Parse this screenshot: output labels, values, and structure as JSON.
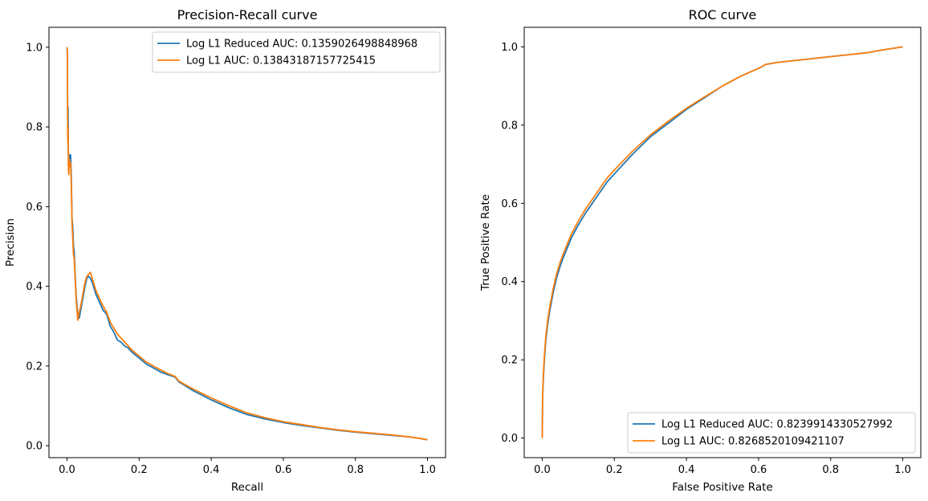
{
  "colors": {
    "series_1": "#1f77b4",
    "series_2": "#ff7f0e",
    "axes": "#000000",
    "legend_border": "#cccccc"
  },
  "chart_data": [
    {
      "type": "line",
      "title": "Precision-Recall curve",
      "xlabel": "Recall",
      "ylabel": "Precision",
      "xlim": [
        -0.05,
        1.05
      ],
      "ylim": [
        -0.03,
        1.05
      ],
      "xticks": [
        "0.0",
        "0.2",
        "0.4",
        "0.6",
        "0.8",
        "1.0"
      ],
      "yticks": [
        "0.0",
        "0.2",
        "0.4",
        "0.6",
        "0.8",
        "1.0"
      ],
      "grid": false,
      "legend_position": "upper right",
      "series": [
        {
          "name": "Log L1 Reduced AUC: 0.1359026498848968",
          "color": "#1f77b4",
          "x": [
            0,
            0.001,
            0.002,
            0.003,
            0.004,
            0.006,
            0.008,
            0.01,
            0.012,
            0.014,
            0.016,
            0.018,
            0.02,
            0.023,
            0.026,
            0.03,
            0.034,
            0.038,
            0.042,
            0.046,
            0.05,
            0.055,
            0.06,
            0.065,
            0.07,
            0.08,
            0.09,
            0.1,
            0.11,
            0.12,
            0.13,
            0.14,
            0.15,
            0.16,
            0.17,
            0.18,
            0.2,
            0.22,
            0.24,
            0.26,
            0.28,
            0.3,
            0.31,
            0.32,
            0.35,
            0.4,
            0.45,
            0.5,
            0.55,
            0.6,
            0.65,
            0.7,
            0.75,
            0.8,
            0.85,
            0.9,
            0.95,
            0.98,
            1.0
          ],
          "y": [
            1.0,
            0.98,
            0.78,
            0.85,
            0.7,
            0.73,
            0.72,
            0.73,
            0.68,
            0.57,
            0.55,
            0.5,
            0.49,
            0.42,
            0.37,
            0.33,
            0.32,
            0.34,
            0.36,
            0.38,
            0.4,
            0.42,
            0.425,
            0.42,
            0.41,
            0.38,
            0.36,
            0.34,
            0.33,
            0.3,
            0.285,
            0.265,
            0.26,
            0.25,
            0.245,
            0.235,
            0.22,
            0.205,
            0.195,
            0.185,
            0.178,
            0.172,
            0.16,
            0.155,
            0.138,
            0.115,
            0.095,
            0.078,
            0.067,
            0.058,
            0.051,
            0.045,
            0.039,
            0.034,
            0.03,
            0.026,
            0.022,
            0.018,
            0.015
          ]
        },
        {
          "name": "Log L1 AUC: 0.13843187157725415",
          "color": "#ff7f0e",
          "x": [
            0,
            0.001,
            0.002,
            0.003,
            0.004,
            0.005,
            0.006,
            0.008,
            0.01,
            0.012,
            0.014,
            0.016,
            0.018,
            0.02,
            0.023,
            0.026,
            0.03,
            0.034,
            0.038,
            0.042,
            0.046,
            0.05,
            0.055,
            0.06,
            0.065,
            0.07,
            0.08,
            0.09,
            0.1,
            0.11,
            0.12,
            0.13,
            0.14,
            0.15,
            0.16,
            0.17,
            0.18,
            0.2,
            0.22,
            0.24,
            0.26,
            0.28,
            0.3,
            0.31,
            0.32,
            0.35,
            0.4,
            0.45,
            0.5,
            0.55,
            0.6,
            0.65,
            0.7,
            0.75,
            0.8,
            0.85,
            0.9,
            0.95,
            0.98,
            1.0
          ],
          "y": [
            1.0,
            0.99,
            0.76,
            0.8,
            0.69,
            0.68,
            0.72,
            0.7,
            0.71,
            0.66,
            0.56,
            0.52,
            0.48,
            0.47,
            0.41,
            0.36,
            0.315,
            0.335,
            0.35,
            0.37,
            0.39,
            0.41,
            0.425,
            0.43,
            0.435,
            0.42,
            0.39,
            0.37,
            0.35,
            0.335,
            0.31,
            0.295,
            0.28,
            0.27,
            0.26,
            0.25,
            0.24,
            0.225,
            0.21,
            0.2,
            0.19,
            0.181,
            0.174,
            0.162,
            0.157,
            0.142,
            0.12,
            0.1,
            0.082,
            0.07,
            0.06,
            0.053,
            0.046,
            0.04,
            0.035,
            0.031,
            0.027,
            0.022,
            0.018,
            0.015
          ]
        }
      ]
    },
    {
      "type": "line",
      "title": "ROC curve",
      "xlabel": "False Positive Rate",
      "ylabel": "True Positive Rate",
      "xlim": [
        -0.05,
        1.05
      ],
      "ylim": [
        -0.05,
        1.05
      ],
      "xticks": [
        "0.0",
        "0.2",
        "0.4",
        "0.6",
        "0.8",
        "1.0"
      ],
      "yticks": [
        "0.0",
        "0.2",
        "0.4",
        "0.6",
        "0.8",
        "1.0"
      ],
      "grid": false,
      "legend_position": "lower right",
      "series": [
        {
          "name": "Log L1 Reduced AUC: 0.8239914330527992",
          "color": "#1f77b4",
          "x": [
            0,
            0.001,
            0.003,
            0.006,
            0.01,
            0.015,
            0.02,
            0.03,
            0.04,
            0.05,
            0.06,
            0.08,
            0.1,
            0.12,
            0.15,
            0.18,
            0.2,
            0.25,
            0.3,
            0.35,
            0.4,
            0.45,
            0.5,
            0.55,
            0.6,
            0.62,
            0.65,
            0.7,
            0.75,
            0.8,
            0.85,
            0.9,
            0.95,
            1.0
          ],
          "y": [
            0,
            0.1,
            0.15,
            0.2,
            0.25,
            0.29,
            0.32,
            0.37,
            0.41,
            0.44,
            0.465,
            0.51,
            0.545,
            0.575,
            0.615,
            0.655,
            0.675,
            0.725,
            0.77,
            0.805,
            0.84,
            0.87,
            0.9,
            0.925,
            0.945,
            0.955,
            0.96,
            0.965,
            0.97,
            0.975,
            0.98,
            0.985,
            0.993,
            1.0
          ]
        },
        {
          "name": "Log L1 AUC: 0.8268520109421107",
          "color": "#ff7f0e",
          "x": [
            0,
            0.001,
            0.003,
            0.006,
            0.01,
            0.015,
            0.02,
            0.03,
            0.04,
            0.05,
            0.06,
            0.08,
            0.1,
            0.12,
            0.15,
            0.18,
            0.2,
            0.25,
            0.3,
            0.35,
            0.4,
            0.45,
            0.5,
            0.55,
            0.6,
            0.62,
            0.65,
            0.7,
            0.75,
            0.8,
            0.85,
            0.9,
            0.95,
            1.0
          ],
          "y": [
            0,
            0.11,
            0.16,
            0.21,
            0.26,
            0.3,
            0.33,
            0.38,
            0.42,
            0.45,
            0.475,
            0.52,
            0.555,
            0.585,
            0.625,
            0.665,
            0.685,
            0.733,
            0.775,
            0.81,
            0.843,
            0.872,
            0.9,
            0.925,
            0.945,
            0.955,
            0.96,
            0.965,
            0.97,
            0.975,
            0.98,
            0.985,
            0.993,
            1.0
          ]
        }
      ]
    }
  ]
}
